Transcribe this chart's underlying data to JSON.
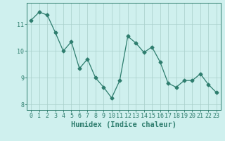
{
  "x": [
    0,
    1,
    2,
    3,
    4,
    5,
    6,
    7,
    8,
    9,
    10,
    11,
    12,
    13,
    14,
    15,
    16,
    17,
    18,
    19,
    20,
    21,
    22,
    23
  ],
  "y": [
    11.15,
    11.45,
    11.35,
    10.7,
    10.0,
    10.35,
    9.35,
    9.7,
    9.0,
    8.65,
    8.25,
    8.9,
    10.55,
    10.3,
    9.95,
    10.15,
    9.6,
    8.8,
    8.65,
    8.9,
    8.9,
    9.15,
    8.75,
    8.45
  ],
  "line_color": "#2e7d6e",
  "marker": "D",
  "marker_size": 2.5,
  "bg_color": "#cff0ee",
  "grid_color": "#a8ceca",
  "axis_color": "#2e7d6e",
  "xlabel": "Humidex (Indice chaleur)",
  "xlim": [
    -0.5,
    23.5
  ],
  "ylim": [
    7.8,
    11.8
  ],
  "yticks": [
    8,
    9,
    10,
    11
  ],
  "xticks": [
    0,
    1,
    2,
    3,
    4,
    5,
    6,
    7,
    8,
    9,
    10,
    11,
    12,
    13,
    14,
    15,
    16,
    17,
    18,
    19,
    20,
    21,
    22,
    23
  ],
  "tick_fontsize": 6,
  "label_fontsize": 7.5
}
